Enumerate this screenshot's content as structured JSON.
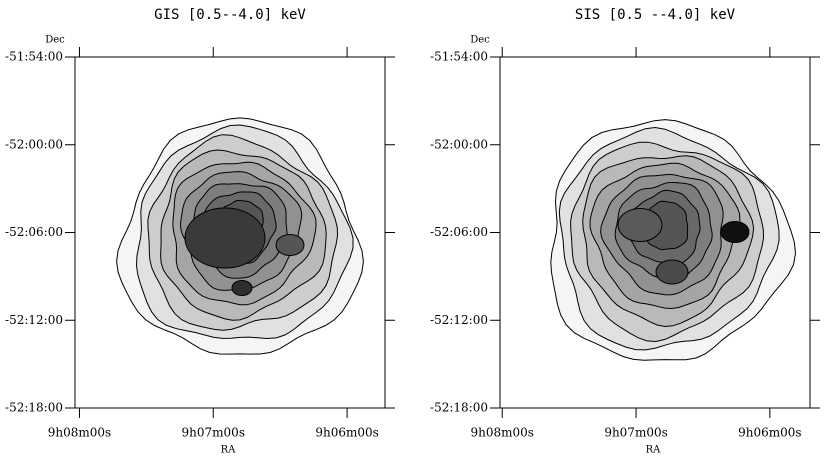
{
  "chart_data": [
    {
      "type": "contour",
      "title": "GIS [0.5--4.0] keV",
      "xlabel": "RA",
      "ylabel": "Dec",
      "xlim": [
        32882,
        32743
      ],
      "xticks": [
        {
          "value": 32880,
          "label": "9h08m00s"
        },
        {
          "value": 32820,
          "label": "9h07m00s"
        },
        {
          "value": 32760,
          "label": "9h06m00s"
        }
      ],
      "ylim": [
        -52.3,
        -51.9
      ],
      "yticks": [
        {
          "value": -51.9,
          "label": "-51:54:00"
        },
        {
          "value": -52.0,
          "label": "-52:00:00"
        },
        {
          "value": -52.1,
          "label": "-52:06:00"
        },
        {
          "value": -52.2,
          "label": "-52:12:00"
        },
        {
          "value": -52.3,
          "label": "-52:18:00"
        }
      ]
    },
    {
      "type": "contour",
      "title": "SIS [0.5 --4.0] keV",
      "xlabel": "RA",
      "ylabel": "Dec",
      "xlim": [
        32881,
        32742
      ],
      "xticks": [
        {
          "value": 32880,
          "label": "9h08m00s"
        },
        {
          "value": 32820,
          "label": "9h07m00s"
        },
        {
          "value": 32760,
          "label": "9h06m00s"
        }
      ],
      "ylim": [
        -52.3,
        -51.9
      ],
      "yticks": [
        {
          "value": -51.9,
          "label": "-51:54:00"
        },
        {
          "value": -52.0,
          "label": "-52:00:00"
        },
        {
          "value": -52.1,
          "label": "-52:06:00"
        },
        {
          "value": -52.2,
          "label": "-52:12:00"
        },
        {
          "value": -52.3,
          "label": "-52:18:00"
        }
      ]
    }
  ]
}
